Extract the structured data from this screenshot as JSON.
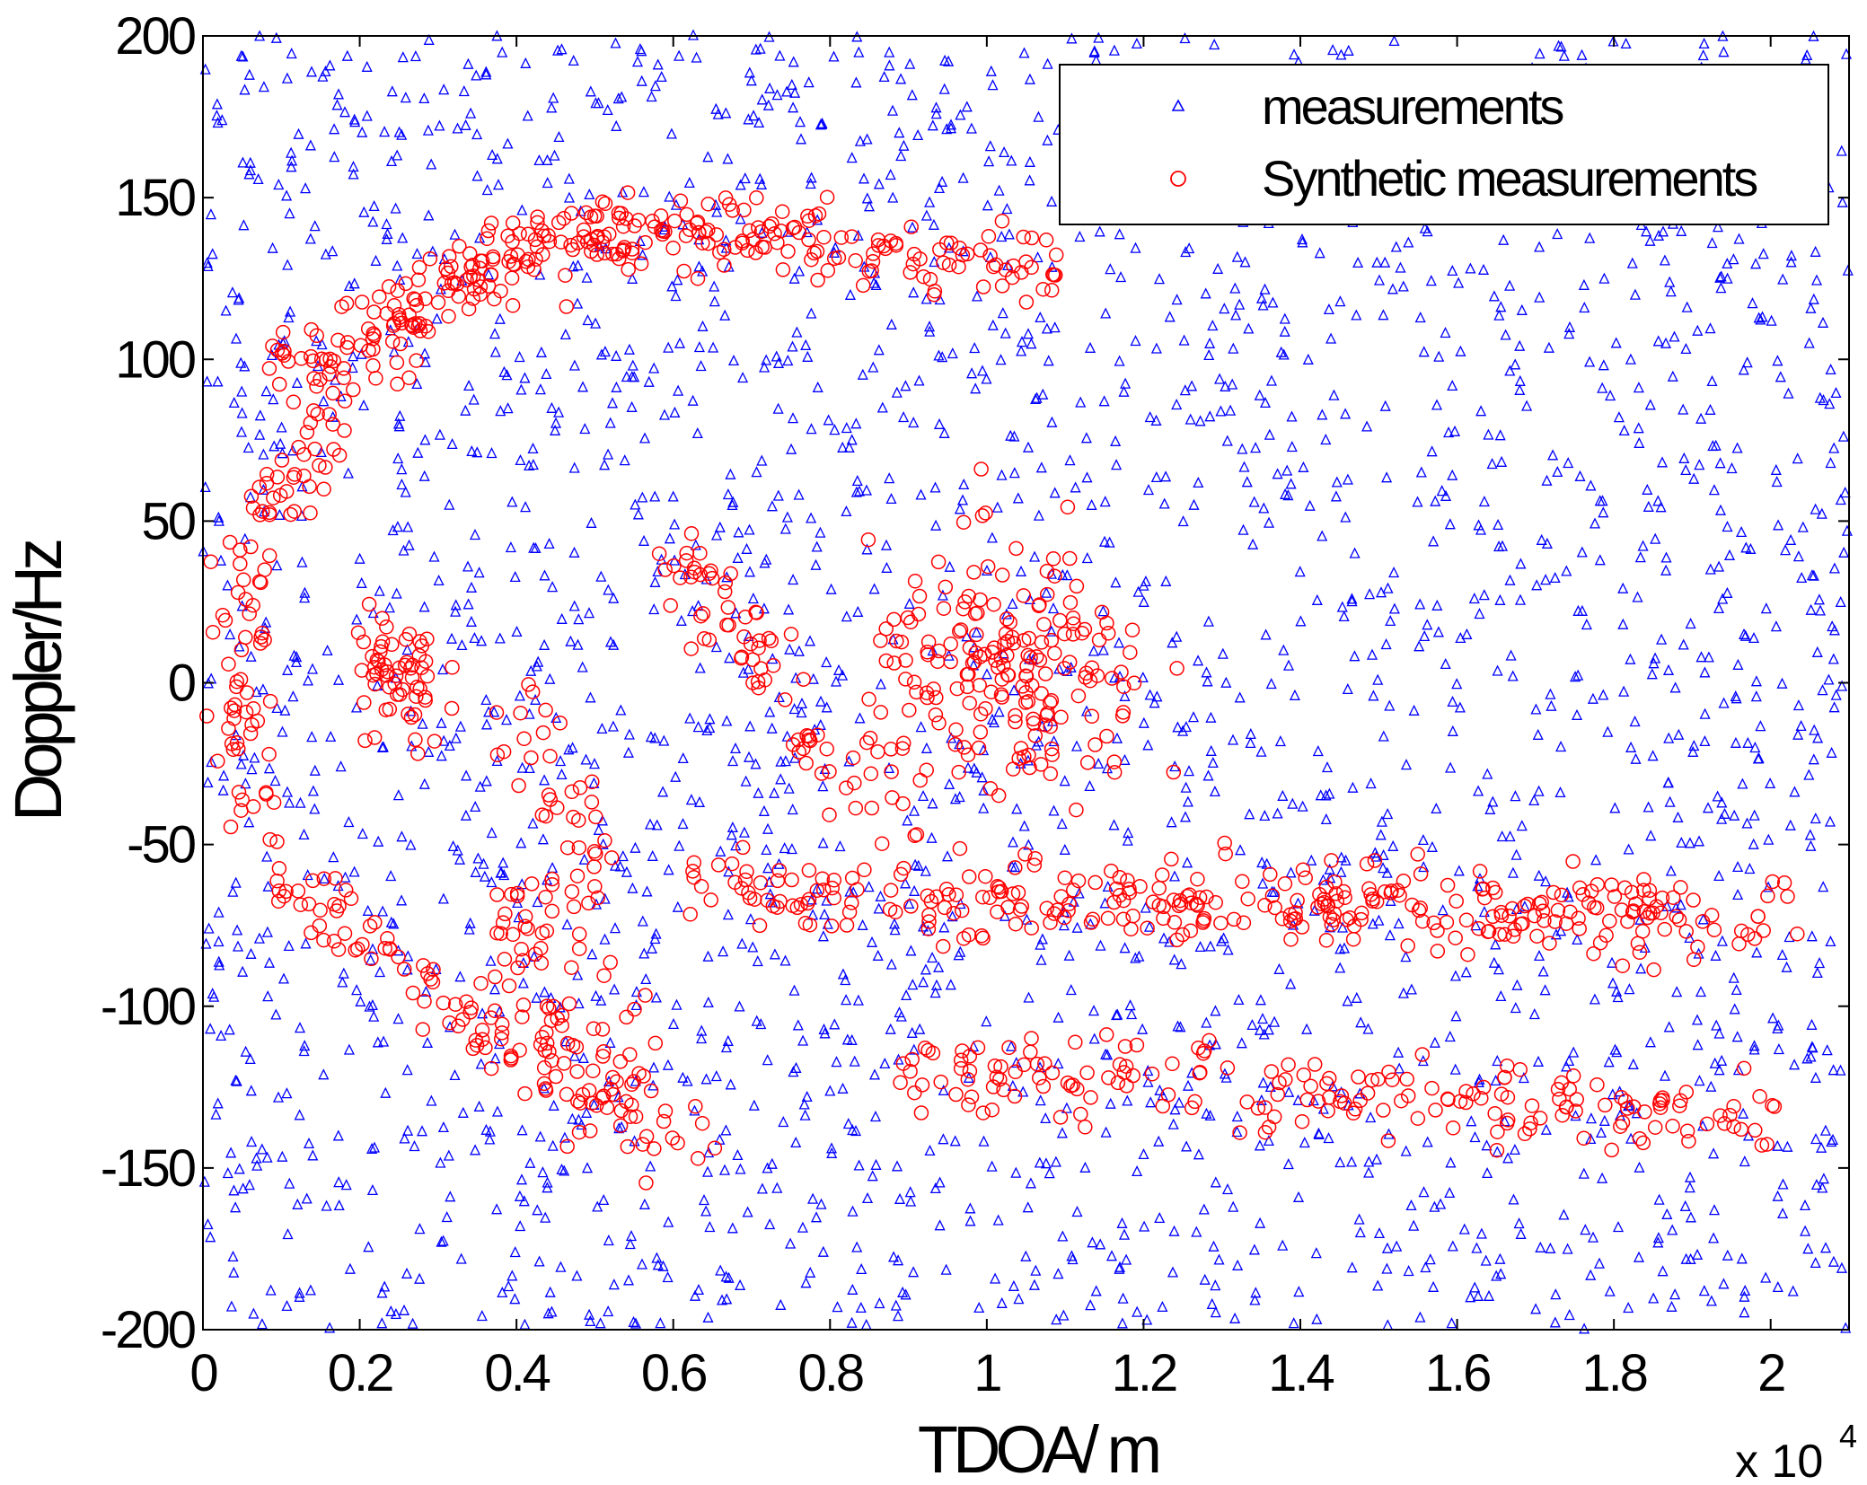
{
  "chart_data": {
    "type": "scatter",
    "title": "",
    "xlabel": "TDOA/ m",
    "ylabel": "Doppler/Hz",
    "x_scale_label": "x 10",
    "x_scale_exponent": "4",
    "xlim": [
      0,
      21000
    ],
    "ylim": [
      -200,
      200
    ],
    "x_ticks": [
      0,
      2000,
      4000,
      6000,
      8000,
      10000,
      12000,
      14000,
      16000,
      18000,
      20000
    ],
    "x_tick_labels": [
      "0",
      "0.2",
      "0.4",
      "0.6",
      "0.8",
      "1",
      "1.2",
      "1.4",
      "1.6",
      "1.8",
      "2"
    ],
    "y_ticks": [
      -200,
      -150,
      -100,
      -50,
      0,
      50,
      100,
      150,
      200
    ],
    "y_tick_labels": [
      "-200",
      "-150",
      "-100",
      "-50",
      "0",
      "50",
      "100",
      "150",
      "200"
    ],
    "grid": false,
    "legend_position": "top-right",
    "series": [
      {
        "name": "measurements",
        "marker": "triangle",
        "color": "#0000ff",
        "distribution": "uniform clutter over the full plot area",
        "approx_count": 2600,
        "extent": {
          "x": [
            0,
            21000
          ],
          "y": [
            -200,
            200
          ]
        }
      },
      {
        "name": "Synthetic measurements",
        "marker": "circle",
        "color": "#ff0000",
        "approx_count": 1500,
        "clusters": [
          {
            "shape": "arc",
            "center": [
              6000,
              0
            ],
            "radius_x": 5500,
            "radius_y": 140,
            "angle_range_deg": [
              95,
              200
            ],
            "count": 180
          },
          {
            "shape": "line",
            "from": [
              800,
              95
            ],
            "to": [
              4500,
              140
            ],
            "count": 80
          },
          {
            "shape": "line",
            "from": [
              4500,
              140
            ],
            "to": [
              8000,
              140
            ],
            "count": 90
          },
          {
            "shape": "line",
            "from": [
              8000,
              135
            ],
            "to": [
              11000,
              125
            ],
            "count": 60
          },
          {
            "shape": "blob",
            "center": [
              10300,
              0
            ],
            "spread": [
              900,
              20
            ],
            "count": 200
          },
          {
            "shape": "blob",
            "center": [
              2500,
              0
            ],
            "spread": [
              300,
              12
            ],
            "count": 60
          },
          {
            "shape": "line",
            "from": [
              6500,
              -65
            ],
            "to": [
              20000,
              -72
            ],
            "count": 320
          },
          {
            "shape": "line",
            "from": [
              9000,
              -120
            ],
            "to": [
              20000,
              -135
            ],
            "count": 190
          },
          {
            "shape": "arc",
            "center": [
              6500,
              -60
            ],
            "radius_x": 2500,
            "radius_y": 80,
            "angle_range_deg": [
              180,
              270
            ],
            "count": 70
          },
          {
            "shape": "line",
            "from": [
              4000,
              0
            ],
            "to": [
              5500,
              -120
            ],
            "count": 60
          },
          {
            "shape": "line",
            "from": [
              1000,
              -60
            ],
            "to": [
              5500,
              -140
            ],
            "count": 90
          },
          {
            "shape": "line",
            "from": [
              6000,
              40
            ],
            "to": [
              8500,
              -40
            ],
            "count": 70
          }
        ]
      }
    ]
  }
}
